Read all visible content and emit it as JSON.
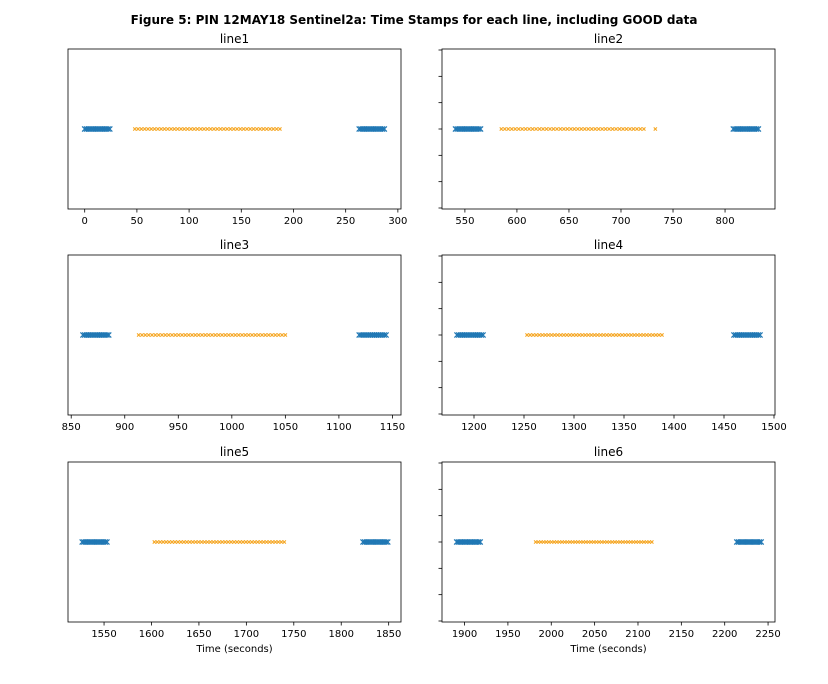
{
  "figure": {
    "title": "Figure 5: PIN 12MAY18  Sentinel2a: Time Stamps for each line, including GOOD data"
  },
  "colors": {
    "good": "#1f77b4",
    "other": "#f5a623"
  },
  "chart_data": [
    {
      "type": "scatter",
      "title": "line1",
      "xlabel": "",
      "xlim": [
        -16,
        303
      ],
      "xticks": [
        0,
        50,
        100,
        150,
        200,
        250,
        300
      ],
      "show_y_ticks": false,
      "series": [
        {
          "marker": "x",
          "color_key": "good",
          "ranges": [
            {
              "start": 0,
              "end": 24,
              "n": 15
            },
            {
              "start": 263,
              "end": 287,
              "n": 15
            }
          ]
        },
        {
          "marker": "x",
          "color_key": "other",
          "ranges": [
            {
              "start": 48,
              "end": 187,
              "n": 45
            }
          ]
        }
      ]
    },
    {
      "type": "scatter",
      "title": "line2",
      "xlabel": "",
      "xlim": [
        528,
        848
      ],
      "xticks": [
        550,
        600,
        650,
        700,
        750,
        800
      ],
      "show_y_ticks": true,
      "series": [
        {
          "marker": "x",
          "color_key": "good",
          "ranges": [
            {
              "start": 541,
              "end": 565,
              "n": 15
            },
            {
              "start": 808,
              "end": 832,
              "n": 15
            }
          ]
        },
        {
          "marker": "x",
          "color_key": "other",
          "ranges": [
            {
              "start": 585,
              "end": 722,
              "n": 42
            },
            {
              "start": 733,
              "end": 733,
              "n": 1
            }
          ]
        }
      ]
    },
    {
      "type": "scatter",
      "title": "line3",
      "xlabel": "",
      "xlim": [
        847,
        1158
      ],
      "xticks": [
        850,
        900,
        950,
        1000,
        1050,
        1100,
        1150
      ],
      "show_y_ticks": false,
      "series": [
        {
          "marker": "x",
          "color_key": "good",
          "ranges": [
            {
              "start": 861,
              "end": 885,
              "n": 15
            },
            {
              "start": 1119,
              "end": 1144,
              "n": 15
            }
          ]
        },
        {
          "marker": "x",
          "color_key": "other",
          "ranges": [
            {
              "start": 913,
              "end": 1050,
              "n": 45
            }
          ]
        }
      ]
    },
    {
      "type": "scatter",
      "title": "line4",
      "xlabel": "",
      "xlim": [
        1168,
        1501
      ],
      "xticks": [
        1200,
        1250,
        1300,
        1350,
        1400,
        1450,
        1500
      ],
      "show_y_ticks": true,
      "series": [
        {
          "marker": "x",
          "color_key": "good",
          "ranges": [
            {
              "start": 1183,
              "end": 1209,
              "n": 15
            },
            {
              "start": 1460,
              "end": 1486,
              "n": 15
            }
          ]
        },
        {
          "marker": "x",
          "color_key": "other",
          "ranges": [
            {
              "start": 1253,
              "end": 1388,
              "n": 45
            }
          ]
        }
      ]
    },
    {
      "type": "scatter",
      "title": "line5",
      "xlabel": "Time (seconds)",
      "xlim": [
        1512,
        1863
      ],
      "xticks": [
        1550,
        1600,
        1650,
        1700,
        1750,
        1800,
        1850
      ],
      "show_y_ticks": false,
      "series": [
        {
          "marker": "x",
          "color_key": "good",
          "ranges": [
            {
              "start": 1527,
              "end": 1553,
              "n": 15
            },
            {
              "start": 1823,
              "end": 1849,
              "n": 15
            }
          ]
        },
        {
          "marker": "x",
          "color_key": "other",
          "ranges": [
            {
              "start": 1603,
              "end": 1740,
              "n": 45
            }
          ]
        }
      ]
    },
    {
      "type": "scatter",
      "title": "line6",
      "xlabel": "Time (seconds)",
      "xlim": [
        1874,
        2258
      ],
      "xticks": [
        1900,
        1950,
        2000,
        2050,
        2100,
        2150,
        2200,
        2250
      ],
      "show_y_ticks": true,
      "series": [
        {
          "marker": "x",
          "color_key": "good",
          "ranges": [
            {
              "start": 1891,
              "end": 1918,
              "n": 15
            },
            {
              "start": 2214,
              "end": 2242,
              "n": 15
            }
          ]
        },
        {
          "marker": "x",
          "color_key": "other",
          "ranges": [
            {
              "start": 1982,
              "end": 2116,
              "n": 45
            }
          ]
        }
      ]
    }
  ]
}
